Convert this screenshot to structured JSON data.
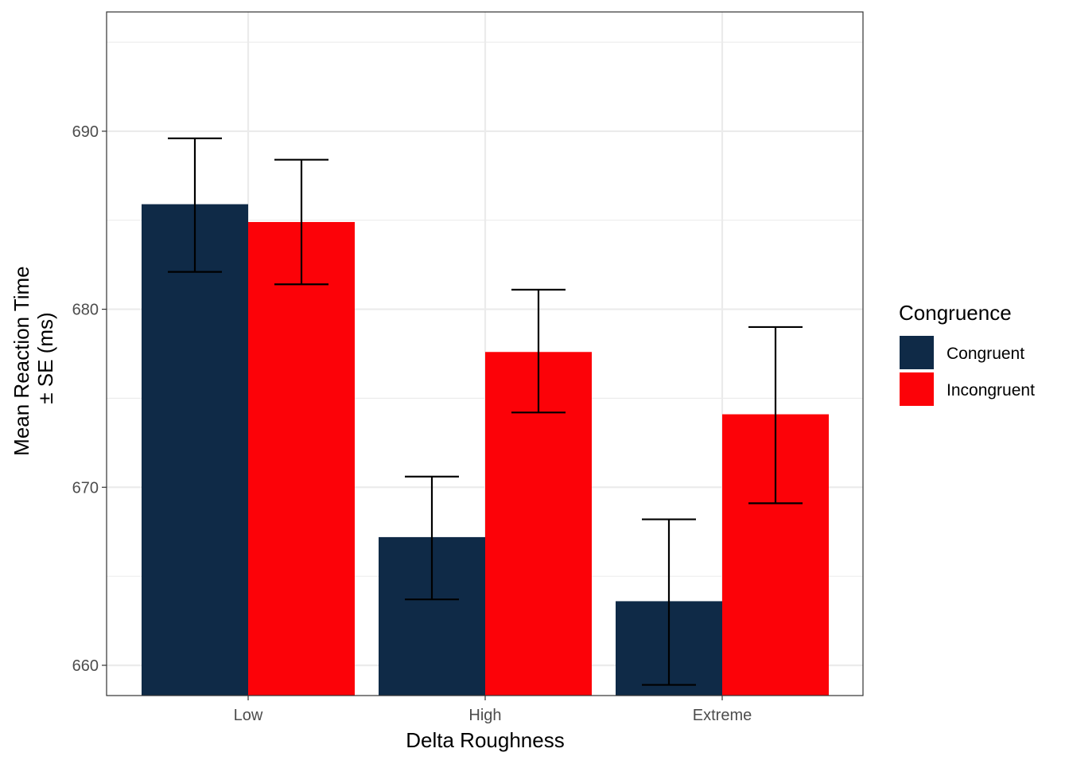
{
  "chart_data": {
    "type": "bar",
    "xlabel": "Delta Roughness",
    "ylabel_lines": [
      "Mean Reaction Time",
      "± SE (ms)"
    ],
    "categories": [
      "Low",
      "High",
      "Extreme"
    ],
    "ylim": [
      658.3,
      696.7
    ],
    "yticks": [
      660,
      670,
      680,
      690
    ],
    "yticks_labels": [
      "660",
      "670",
      "680",
      "690"
    ],
    "grid": true,
    "legend": {
      "title": "Congruence",
      "position": "right"
    },
    "series": [
      {
        "name": "Congruent",
        "color": "#0f2a47",
        "values": [
          685.9,
          667.2,
          663.6
        ],
        "se_low": [
          682.1,
          663.7,
          658.9
        ],
        "se_high": [
          689.6,
          670.6,
          668.2
        ]
      },
      {
        "name": "Incongruent",
        "color": "#fc0208",
        "values": [
          684.9,
          677.6,
          674.1
        ],
        "se_low": [
          681.4,
          674.2,
          669.1
        ],
        "se_high": [
          688.4,
          681.1,
          679.0
        ]
      }
    ]
  }
}
